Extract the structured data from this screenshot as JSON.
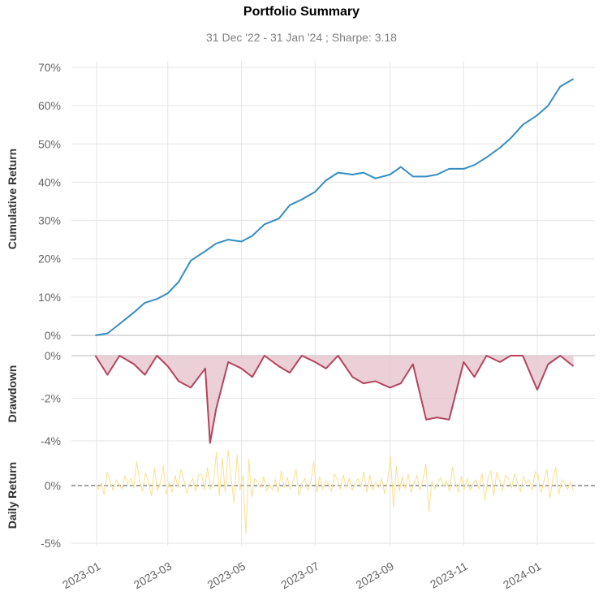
{
  "chart_data": [
    {
      "type": "line",
      "panel": "cumulative",
      "title": "Portfolio Summary",
      "subtitle": "31 Dec '22 - 31 Jan '24 ;  Sharpe: 3.18",
      "ylabel": "Cumulative Return",
      "ylim": [
        0,
        70
      ],
      "yticks": [
        "70%",
        "60%",
        "50%",
        "40%",
        "30%",
        "20%",
        "10%",
        "0%"
      ],
      "ytick_values": [
        70,
        60,
        50,
        40,
        30,
        20,
        10,
        0
      ],
      "color": "#348dc1",
      "x": [
        "2022-12-31",
        "2023-01-10",
        "2023-01-20",
        "2023-02-01",
        "2023-02-10",
        "2023-02-20",
        "2023-03-01",
        "2023-03-10",
        "2023-03-20",
        "2023-04-01",
        "2023-04-10",
        "2023-04-20",
        "2023-05-01",
        "2023-05-10",
        "2023-05-20",
        "2023-06-01",
        "2023-06-10",
        "2023-06-20",
        "2023-07-01",
        "2023-07-10",
        "2023-07-20",
        "2023-08-01",
        "2023-08-10",
        "2023-08-20",
        "2023-09-01",
        "2023-09-10",
        "2023-09-20",
        "2023-10-01",
        "2023-10-10",
        "2023-10-20",
        "2023-11-01",
        "2023-11-10",
        "2023-11-20",
        "2023-12-01",
        "2023-12-10",
        "2023-12-20",
        "2024-01-01",
        "2024-01-10",
        "2024-01-20",
        "2024-01-31"
      ],
      "values": [
        0.0,
        0.5,
        3.0,
        6.0,
        8.5,
        9.5,
        11.0,
        14.0,
        19.5,
        22.0,
        24.0,
        25.0,
        24.5,
        26.0,
        29.0,
        30.5,
        34.0,
        35.5,
        37.5,
        40.5,
        42.5,
        42.0,
        42.5,
        41.0,
        42.0,
        44.0,
        41.5,
        41.5,
        42.0,
        43.5,
        43.5,
        44.5,
        46.5,
        49.0,
        51.5,
        55.0,
        57.5,
        60.0,
        65.0,
        67.0
      ]
    },
    {
      "type": "area",
      "panel": "drawdown",
      "ylabel": "Drawdown",
      "ylim": [
        -4.5,
        0.2
      ],
      "yticks": [
        "0%",
        "-2%",
        "-4%"
      ],
      "ytick_values": [
        0,
        -2,
        -4
      ],
      "color": "#b4435e",
      "fill": "#e7c9d0",
      "x": [
        "2022-12-31",
        "2023-01-10",
        "2023-01-20",
        "2023-02-01",
        "2023-02-10",
        "2023-02-20",
        "2023-03-01",
        "2023-03-10",
        "2023-03-20",
        "2023-04-01",
        "2023-04-05",
        "2023-04-10",
        "2023-04-20",
        "2023-05-01",
        "2023-05-10",
        "2023-05-20",
        "2023-06-01",
        "2023-06-10",
        "2023-06-20",
        "2023-07-01",
        "2023-07-10",
        "2023-07-20",
        "2023-08-01",
        "2023-08-10",
        "2023-08-20",
        "2023-09-01",
        "2023-09-10",
        "2023-09-20",
        "2023-10-01",
        "2023-10-10",
        "2023-10-20",
        "2023-11-01",
        "2023-11-10",
        "2023-11-20",
        "2023-12-01",
        "2023-12-10",
        "2023-12-20",
        "2024-01-01",
        "2024-01-10",
        "2024-01-20",
        "2024-01-31"
      ],
      "values": [
        0.0,
        -0.9,
        0.0,
        -0.4,
        -0.9,
        0.0,
        -0.5,
        -1.2,
        -1.5,
        -0.6,
        -4.1,
        -2.5,
        -0.3,
        -0.6,
        -1.0,
        0.0,
        -0.5,
        -0.8,
        0.0,
        -0.3,
        -0.6,
        0.0,
        -1.0,
        -1.3,
        -1.2,
        -1.5,
        -1.3,
        -0.4,
        -3.0,
        -2.9,
        -3.0,
        -0.3,
        -1.0,
        0.0,
        -0.3,
        0.0,
        0.0,
        -1.6,
        -0.4,
        0.0,
        -0.5
      ]
    },
    {
      "type": "line",
      "panel": "daily",
      "ylabel": "Daily Return",
      "ylim": [
        -5,
        3.2
      ],
      "yticks": [
        "0%",
        "-5%"
      ],
      "ytick_values": [
        0,
        -5
      ],
      "color": "#fbe092",
      "baseline_color": "#808080",
      "x_range": [
        "2022-12-31",
        "2024-01-31"
      ],
      "values": [
        0.0,
        -0.3,
        0.2,
        -0.8,
        1.2,
        0.3,
        -0.4,
        0.5,
        0.1,
        -0.3,
        0.8,
        0.2,
        0.6,
        -0.2,
        2.1,
        0.4,
        -0.5,
        1.1,
        0.3,
        -0.9,
        1.5,
        -0.4,
        0.2,
        1.7,
        -0.8,
        0.3,
        -0.6,
        0.9,
        -0.2,
        1.4,
        0.5,
        -0.7,
        0.2,
        0.6,
        -0.5,
        0.9,
        1.0,
        -0.4,
        1.6,
        -0.3,
        0.3,
        2.9,
        -0.9,
        2.4,
        -0.6,
        3.1,
        0.7,
        -1.5,
        2.7,
        -0.4,
        0.9,
        -4.2,
        2.3,
        -1.0,
        0.6,
        0.3,
        -0.2,
        0.8,
        -0.5,
        0.1,
        -0.4,
        0.5,
        -0.6,
        1.3,
        -0.2,
        0.7,
        -0.3,
        0.4,
        1.4,
        -0.9,
        0.2,
        0.6,
        -0.4,
        0.3,
        2.1,
        -0.6,
        0.8,
        -0.3,
        0.4,
        0.1,
        -0.5,
        1.0,
        0.5,
        -0.3,
        0.9,
        -0.2,
        0.6,
        -0.4,
        0.2,
        0.6,
        -0.1,
        1.2,
        -0.6,
        0.9,
        -0.4,
        0.3,
        -0.2,
        0.6,
        -0.7,
        0.4,
        2.5,
        -1.9,
        1.7,
        -0.5,
        0.8,
        -0.3,
        1.0,
        -0.6,
        0.2,
        0.9,
        -0.4,
        0.5,
        1.9,
        -2.3,
        0.4,
        -0.3,
        0.2,
        0.7,
        -0.1,
        0.4,
        -0.5,
        1.6,
        0.3,
        -0.6,
        0.8,
        -0.3,
        0.6,
        -0.4,
        0.2,
        0.5,
        -0.3,
        1.1,
        -1.3,
        0.6,
        1.3,
        -0.9,
        1.2,
        0.4,
        -0.4,
        0.9,
        0.6,
        -0.2,
        1.0,
        0.3,
        -0.5,
        0.8,
        0.2,
        0.5,
        -0.4,
        1.2,
        0.9,
        -0.6,
        0.4,
        1.4,
        -1.1,
        0.6,
        1.6,
        -0.8,
        0.5,
        0.2,
        -0.3,
        0.3,
        -0.5
      ]
    }
  ],
  "xaxis": {
    "ticks": [
      "2023-01",
      "2023-03",
      "2023-05",
      "2023-07",
      "2023-09",
      "2023-11",
      "2024-01"
    ]
  }
}
